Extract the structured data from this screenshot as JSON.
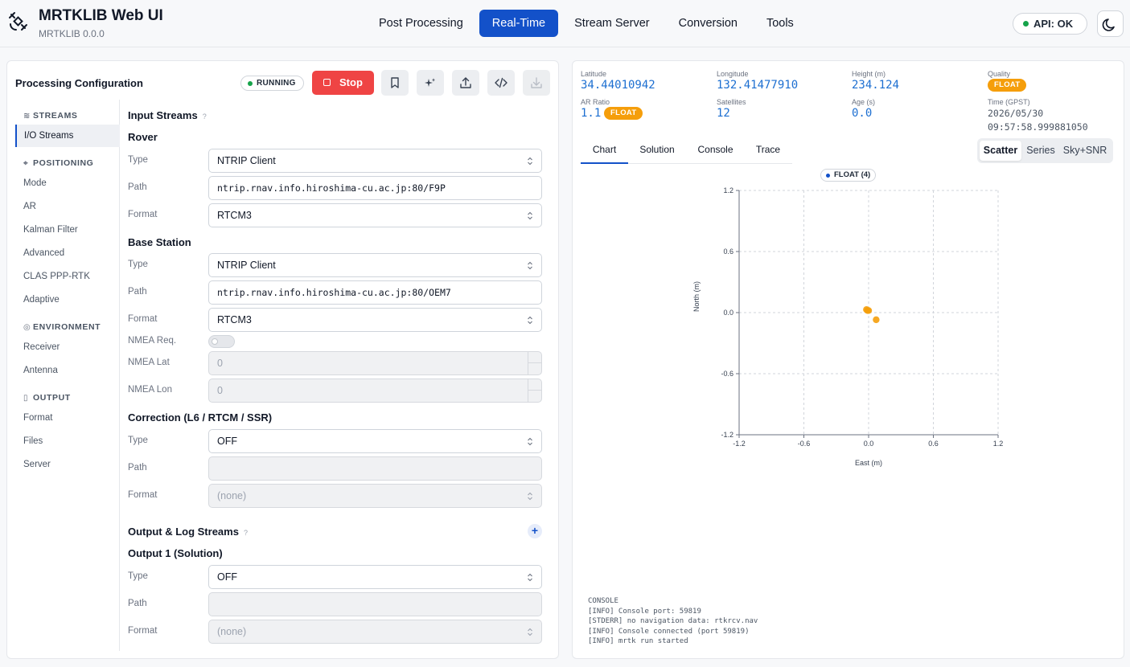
{
  "app": {
    "title": "MRTKLIB Web UI",
    "version": "MRTKLIB 0.0.0"
  },
  "nav": {
    "items": [
      "Post Processing",
      "Real-Time",
      "Stream Server",
      "Conversion",
      "Tools"
    ],
    "active": "Real-Time"
  },
  "api_status": "API: OK",
  "config": {
    "title": "Processing Configuration",
    "status": "RUNNING",
    "stop_label": "Stop",
    "sidebar": {
      "streams": "STREAMS",
      "io_streams": "I/O Streams",
      "positioning": "POSITIONING",
      "mode": "Mode",
      "ar": "AR",
      "kalman": "Kalman Filter",
      "advanced": "Advanced",
      "clas": "CLAS PPP-RTK",
      "adaptive": "Adaptive",
      "environment": "ENVIRONMENT",
      "receiver": "Receiver",
      "antenna": "Antenna",
      "output": "OUTPUT",
      "format": "Format",
      "files": "Files",
      "server": "Server"
    },
    "input_streams": {
      "title": "Input Streams",
      "help": "?",
      "rover": {
        "title": "Rover",
        "type": "NTRIP Client",
        "path": "ntrip.rnav.info.hiroshima-cu.ac.jp:80/F9P",
        "format": "RTCM3"
      },
      "base": {
        "title": "Base Station",
        "type": "NTRIP Client",
        "path": "ntrip.rnav.info.hiroshima-cu.ac.jp:80/OEM7",
        "format": "RTCM3"
      },
      "nmea_req_label": "NMEA Req.",
      "nmea_lat_label": "NMEA Lat",
      "nmea_lat": "0",
      "nmea_lon_label": "NMEA Lon",
      "nmea_lon": "0",
      "correction": {
        "title": "Correction (L6 / RTCM / SSR)",
        "type": "OFF",
        "path": "",
        "format": "(none)"
      }
    },
    "output_streams": {
      "title": "Output & Log Streams",
      "help": "?",
      "add": "+",
      "output1": {
        "title": "Output 1 (Solution)",
        "type": "OFF",
        "path": "",
        "format": "(none)"
      }
    },
    "labels": {
      "type": "Type",
      "path": "Path",
      "format": "Format"
    }
  },
  "status": {
    "latitude_label": "Latitude",
    "latitude": "34.44010942",
    "longitude_label": "Longitude",
    "longitude": "132.41477910",
    "height_label": "Height (m)",
    "height": "234.124",
    "quality_label": "Quality",
    "quality": "FLOAT",
    "ar_label": "AR Ratio",
    "ar": "1.1",
    "ar_badge": "FLOAT",
    "sats_label": "Satellites",
    "sats": "12",
    "age_label": "Age (s)",
    "age": "0.0",
    "time_label": "Time (GPST)",
    "time_date": "2026/05/30",
    "time_clock": "09:57:58.999881050"
  },
  "tabs": [
    "Chart",
    "Solution",
    "Console",
    "Trace"
  ],
  "active_tab": "Chart",
  "views": [
    "Scatter",
    "Series",
    "Sky+SNR"
  ],
  "active_view": "Scatter",
  "chart_data": {
    "type": "scatter",
    "legend": [
      "FLOAT (4)"
    ],
    "xlabel": "East (m)",
    "ylabel": "North (m)",
    "xlim": [
      -1.2,
      1.2
    ],
    "ylim": [
      -1.2,
      1.2
    ],
    "xticks": [
      "-1.2",
      "-0.6",
      "0.0",
      "0.6",
      "1.2"
    ],
    "yticks": [
      "1.2",
      "0.6",
      "0.0",
      "-0.6",
      "-1.2"
    ],
    "grid": true,
    "series": [
      {
        "name": "FLOAT (4)",
        "color": "#f59e0b",
        "points": [
          [
            -0.02,
            0.03
          ],
          [
            -0.01,
            0.02
          ],
          [
            0.0,
            0.02
          ],
          [
            0.07,
            -0.07
          ]
        ]
      }
    ]
  },
  "console": {
    "title": "CONSOLE",
    "lines": [
      "[INFO] Console port: 59819",
      "[STDERR] no navigation data: rtkrcv.nav",
      "[INFO] Console connected (port 59819)",
      "[INFO] mrtk run started"
    ]
  }
}
